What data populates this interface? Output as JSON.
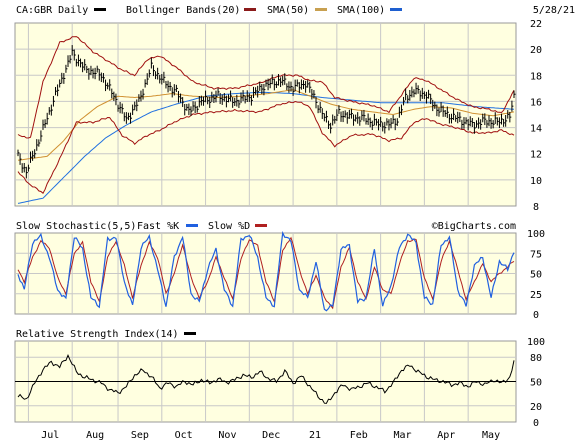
{
  "header": {
    "symbol_label": "CA:GBR Daily",
    "date": "5/28/21",
    "legend": [
      {
        "label": "Bollinger Bands(20)",
        "color": "#8b1a1a"
      },
      {
        "label": "SMA(50)",
        "color": "#8b1a1a"
      },
      {
        "label": "SMA(100)",
        "color": "#c8a050"
      }
    ],
    "legend_extra_swatch_color": "#1e5fd0",
    "price_swatch_color": "#000000"
  },
  "watermark": "©BigCharts.com",
  "colors": {
    "panel_bg": "#ffffe0",
    "grid": "#c8c8c8",
    "price": "#000000",
    "bollinger": "#a01010",
    "sma50": "#d09030",
    "sma100": "#2070e0",
    "stoch_fast": "#2060e0",
    "stoch_slow": "#b02020",
    "rsi": "#000000"
  },
  "x_axis": {
    "months": [
      "Jul",
      "Aug",
      "Sep",
      "Oct",
      "Nov",
      "Dec",
      "21",
      "Feb",
      "Mar",
      "Apr",
      "May"
    ],
    "month_start_index": [
      5,
      26,
      48,
      69,
      90,
      111,
      132,
      153,
      174,
      195,
      216
    ]
  },
  "chart_data": [
    {
      "type": "line",
      "title": "CA:GBR Daily",
      "ylim": [
        8,
        22
      ],
      "yticks": [
        8,
        10,
        12,
        14,
        16,
        18,
        20,
        22
      ],
      "x_count": 239,
      "anchors_price": [
        [
          0,
          11.8
        ],
        [
          4,
          10.6
        ],
        [
          10,
          13
        ],
        [
          18,
          16.5
        ],
        [
          26,
          19.7
        ],
        [
          32,
          18.5
        ],
        [
          40,
          18
        ],
        [
          46,
          16.4
        ],
        [
          52,
          14.6
        ],
        [
          58,
          16
        ],
        [
          64,
          18.6
        ],
        [
          70,
          17.5
        ],
        [
          76,
          16.7
        ],
        [
          82,
          15.2
        ],
        [
          88,
          16
        ],
        [
          96,
          16.4
        ],
        [
          104,
          16
        ],
        [
          112,
          16.4
        ],
        [
          118,
          17.2
        ],
        [
          126,
          17.6
        ],
        [
          132,
          17
        ],
        [
          138,
          17.4
        ],
        [
          142,
          16.4
        ],
        [
          146,
          15
        ],
        [
          150,
          14.2
        ],
        [
          154,
          15.1
        ],
        [
          160,
          14.8
        ],
        [
          166,
          14.7
        ],
        [
          172,
          14.3
        ],
        [
          178,
          14.2
        ],
        [
          182,
          14.6
        ],
        [
          186,
          16.3
        ],
        [
          190,
          16.8
        ],
        [
          196,
          16.5
        ],
        [
          200,
          15.6
        ],
        [
          206,
          15
        ],
        [
          212,
          14.6
        ],
        [
          218,
          14.2
        ],
        [
          224,
          14.5
        ],
        [
          230,
          14.4
        ],
        [
          236,
          14.8
        ],
        [
          238,
          16.4
        ]
      ],
      "anchors_bb_upper": [
        [
          0,
          13.4
        ],
        [
          6,
          13.2
        ],
        [
          12,
          17.5
        ],
        [
          20,
          20.5
        ],
        [
          28,
          21
        ],
        [
          36,
          19.8
        ],
        [
          44,
          19
        ],
        [
          50,
          18.4
        ],
        [
          56,
          18
        ],
        [
          62,
          19.2
        ],
        [
          68,
          19.5
        ],
        [
          76,
          18.6
        ],
        [
          84,
          17.5
        ],
        [
          94,
          17
        ],
        [
          104,
          17
        ],
        [
          116,
          17.4
        ],
        [
          126,
          18
        ],
        [
          134,
          18
        ],
        [
          140,
          17.6
        ],
        [
          146,
          17.5
        ],
        [
          152,
          16.3
        ],
        [
          160,
          16
        ],
        [
          170,
          15.7
        ],
        [
          178,
          15.2
        ],
        [
          184,
          16.5
        ],
        [
          190,
          17.8
        ],
        [
          196,
          17.6
        ],
        [
          202,
          17
        ],
        [
          210,
          16.2
        ],
        [
          218,
          15.6
        ],
        [
          226,
          15.4
        ],
        [
          232,
          15.1
        ],
        [
          238,
          16.8
        ]
      ],
      "anchors_bb_lower": [
        [
          0,
          10.6
        ],
        [
          6,
          9.6
        ],
        [
          12,
          9
        ],
        [
          20,
          11.6
        ],
        [
          28,
          14.4
        ],
        [
          36,
          14.4
        ],
        [
          44,
          14.8
        ],
        [
          50,
          13.4
        ],
        [
          56,
          12.8
        ],
        [
          62,
          13.4
        ],
        [
          68,
          13.8
        ],
        [
          76,
          14.5
        ],
        [
          84,
          15
        ],
        [
          94,
          15.2
        ],
        [
          104,
          15.3
        ],
        [
          116,
          15.2
        ],
        [
          126,
          15.8
        ],
        [
          134,
          16
        ],
        [
          140,
          15.6
        ],
        [
          146,
          13.6
        ],
        [
          152,
          12.6
        ],
        [
          160,
          13.4
        ],
        [
          170,
          13.5
        ],
        [
          178,
          13
        ],
        [
          184,
          13.2
        ],
        [
          190,
          14.4
        ],
        [
          196,
          14.7
        ],
        [
          202,
          14.3
        ],
        [
          210,
          14
        ],
        [
          218,
          13.6
        ],
        [
          226,
          13.6
        ],
        [
          232,
          13.8
        ],
        [
          238,
          13.4
        ]
      ],
      "anchors_sma50": [
        [
          0,
          11.5
        ],
        [
          14,
          11.8
        ],
        [
          22,
          13
        ],
        [
          30,
          14.6
        ],
        [
          38,
          15.6
        ],
        [
          48,
          16.4
        ],
        [
          56,
          16.3
        ],
        [
          64,
          16.4
        ],
        [
          74,
          16.6
        ],
        [
          84,
          16.4
        ],
        [
          96,
          16.3
        ],
        [
          108,
          16.4
        ],
        [
          120,
          16.6
        ],
        [
          132,
          16.9
        ],
        [
          142,
          16.3
        ],
        [
          150,
          15.8
        ],
        [
          160,
          15.4
        ],
        [
          170,
          15.2
        ],
        [
          180,
          15
        ],
        [
          190,
          15.4
        ],
        [
          198,
          15.6
        ],
        [
          208,
          15.5
        ],
        [
          218,
          15.1
        ],
        [
          228,
          14.9
        ],
        [
          238,
          15.2
        ]
      ],
      "anchors_sma100": [
        [
          0,
          8.2
        ],
        [
          12,
          8.6
        ],
        [
          22,
          10.2
        ],
        [
          32,
          11.8
        ],
        [
          42,
          13.2
        ],
        [
          52,
          14.2
        ],
        [
          64,
          15.2
        ],
        [
          76,
          15.8
        ],
        [
          90,
          16.4
        ],
        [
          104,
          16.6
        ],
        [
          118,
          16.7
        ],
        [
          132,
          16.6
        ],
        [
          146,
          16.3
        ],
        [
          160,
          16.1
        ],
        [
          174,
          15.9
        ],
        [
          190,
          15.9
        ],
        [
          204,
          15.9
        ],
        [
          220,
          15.6
        ],
        [
          238,
          15.4
        ]
      ]
    },
    {
      "type": "line",
      "title": "Slow Stochastic(5,5)",
      "series": [
        {
          "name": "Fast %K",
          "color": "#2060e0"
        },
        {
          "name": "Slow %D",
          "color": "#b02020"
        }
      ],
      "ylim": [
        0,
        100
      ],
      "yticks": [
        0,
        25,
        50,
        75,
        100
      ],
      "x_count": 239,
      "anchors_k": [
        [
          0,
          50
        ],
        [
          3,
          30
        ],
        [
          7,
          88
        ],
        [
          11,
          96
        ],
        [
          15,
          70
        ],
        [
          19,
          30
        ],
        [
          23,
          18
        ],
        [
          27,
          96
        ],
        [
          31,
          80
        ],
        [
          35,
          20
        ],
        [
          39,
          10
        ],
        [
          43,
          92
        ],
        [
          47,
          95
        ],
        [
          51,
          40
        ],
        [
          55,
          10
        ],
        [
          59,
          82
        ],
        [
          63,
          95
        ],
        [
          67,
          55
        ],
        [
          71,
          10
        ],
        [
          75,
          70
        ],
        [
          79,
          96
        ],
        [
          83,
          25
        ],
        [
          87,
          15
        ],
        [
          91,
          55
        ],
        [
          95,
          80
        ],
        [
          99,
          30
        ],
        [
          103,
          10
        ],
        [
          107,
          92
        ],
        [
          111,
          98
        ],
        [
          115,
          70
        ],
        [
          119,
          20
        ],
        [
          123,
          10
        ],
        [
          127,
          100
        ],
        [
          131,
          90
        ],
        [
          135,
          30
        ],
        [
          139,
          20
        ],
        [
          143,
          65
        ],
        [
          147,
          5
        ],
        [
          151,
          10
        ],
        [
          155,
          80
        ],
        [
          159,
          85
        ],
        [
          163,
          15
        ],
        [
          167,
          20
        ],
        [
          171,
          80
        ],
        [
          175,
          10
        ],
        [
          179,
          35
        ],
        [
          183,
          82
        ],
        [
          187,
          98
        ],
        [
          191,
          88
        ],
        [
          195,
          20
        ],
        [
          199,
          12
        ],
        [
          203,
          85
        ],
        [
          207,
          95
        ],
        [
          211,
          30
        ],
        [
          215,
          10
        ],
        [
          219,
          60
        ],
        [
          223,
          70
        ],
        [
          227,
          20
        ],
        [
          231,
          65
        ],
        [
          235,
          55
        ],
        [
          238,
          78
        ]
      ],
      "anchors_d": [
        [
          0,
          55
        ],
        [
          3,
          40
        ],
        [
          7,
          70
        ],
        [
          11,
          90
        ],
        [
          15,
          82
        ],
        [
          19,
          45
        ],
        [
          23,
          25
        ],
        [
          27,
          75
        ],
        [
          31,
          88
        ],
        [
          35,
          40
        ],
        [
          39,
          15
        ],
        [
          43,
          70
        ],
        [
          47,
          90
        ],
        [
          51,
          60
        ],
        [
          55,
          20
        ],
        [
          59,
          60
        ],
        [
          63,
          88
        ],
        [
          67,
          70
        ],
        [
          71,
          25
        ],
        [
          75,
          50
        ],
        [
          79,
          86
        ],
        [
          83,
          45
        ],
        [
          87,
          20
        ],
        [
          91,
          40
        ],
        [
          95,
          70
        ],
        [
          99,
          45
        ],
        [
          103,
          18
        ],
        [
          107,
          68
        ],
        [
          111,
          92
        ],
        [
          115,
          84
        ],
        [
          119,
          40
        ],
        [
          123,
          15
        ],
        [
          127,
          78
        ],
        [
          131,
          95
        ],
        [
          135,
          55
        ],
        [
          139,
          25
        ],
        [
          143,
          48
        ],
        [
          147,
          20
        ],
        [
          151,
          8
        ],
        [
          155,
          58
        ],
        [
          159,
          82
        ],
        [
          163,
          40
        ],
        [
          167,
          18
        ],
        [
          171,
          58
        ],
        [
          175,
          30
        ],
        [
          179,
          25
        ],
        [
          183,
          62
        ],
        [
          187,
          90
        ],
        [
          191,
          92
        ],
        [
          195,
          45
        ],
        [
          199,
          18
        ],
        [
          203,
          65
        ],
        [
          207,
          90
        ],
        [
          211,
          55
        ],
        [
          215,
          18
        ],
        [
          219,
          40
        ],
        [
          223,
          62
        ],
        [
          227,
          40
        ],
        [
          231,
          50
        ],
        [
          235,
          58
        ],
        [
          238,
          66
        ]
      ]
    },
    {
      "type": "line",
      "title": "Relative Strength Index(14)",
      "series": [
        {
          "name": "RSI(14)",
          "color": "#000000"
        }
      ],
      "ylim": [
        0,
        100
      ],
      "yticks": [
        0,
        20,
        50,
        80,
        100
      ],
      "reference_line": 50,
      "x_count": 239,
      "anchors_rsi": [
        [
          0,
          32
        ],
        [
          4,
          28
        ],
        [
          8,
          48
        ],
        [
          12,
          65
        ],
        [
          16,
          74
        ],
        [
          20,
          68
        ],
        [
          24,
          82
        ],
        [
          28,
          62
        ],
        [
          32,
          55
        ],
        [
          36,
          52
        ],
        [
          40,
          48
        ],
        [
          44,
          40
        ],
        [
          48,
          36
        ],
        [
          52,
          44
        ],
        [
          56,
          58
        ],
        [
          60,
          64
        ],
        [
          64,
          56
        ],
        [
          68,
          42
        ],
        [
          72,
          48
        ],
        [
          76,
          44
        ],
        [
          80,
          50
        ],
        [
          84,
          46
        ],
        [
          88,
          52
        ],
        [
          92,
          48
        ],
        [
          96,
          53
        ],
        [
          100,
          49
        ],
        [
          104,
          52
        ],
        [
          108,
          58
        ],
        [
          112,
          55
        ],
        [
          116,
          62
        ],
        [
          120,
          54
        ],
        [
          124,
          50
        ],
        [
          128,
          63
        ],
        [
          132,
          48
        ],
        [
          136,
          57
        ],
        [
          140,
          44
        ],
        [
          144,
          32
        ],
        [
          148,
          22
        ],
        [
          152,
          36
        ],
        [
          156,
          46
        ],
        [
          160,
          40
        ],
        [
          164,
          44
        ],
        [
          168,
          48
        ],
        [
          172,
          43
        ],
        [
          176,
          38
        ],
        [
          180,
          48
        ],
        [
          184,
          64
        ],
        [
          188,
          70
        ],
        [
          192,
          62
        ],
        [
          196,
          56
        ],
        [
          200,
          52
        ],
        [
          204,
          50
        ],
        [
          208,
          46
        ],
        [
          212,
          48
        ],
        [
          216,
          44
        ],
        [
          220,
          50
        ],
        [
          224,
          46
        ],
        [
          228,
          52
        ],
        [
          232,
          48
        ],
        [
          236,
          55
        ],
        [
          238,
          74
        ]
      ]
    }
  ]
}
